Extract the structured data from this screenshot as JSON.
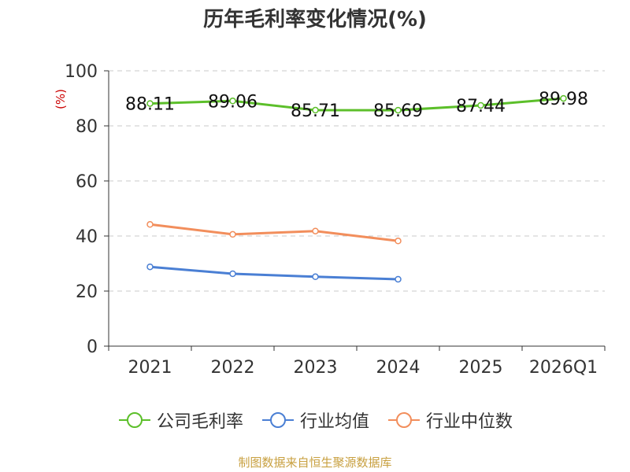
{
  "title": "历年毛利率变化情况(%)",
  "source": "制图数据来自恒生聚源数据库",
  "colors": {
    "company": "#5cbf2a",
    "industry_avg": "#4a7fd4",
    "industry_median": "#f28e5c",
    "ylabel": "#cc0000",
    "source": "#c8a040"
  },
  "legend": [
    {
      "label": "公司毛利率",
      "color": "#5cbf2a"
    },
    {
      "label": "行业均值",
      "color": "#4a7fd4"
    },
    {
      "label": "行业中位数",
      "color": "#f28e5c"
    }
  ],
  "chart_data": {
    "type": "line",
    "title": "历年毛利率变化情况(%)",
    "ylabel": "(%)",
    "xlabel": "",
    "categories": [
      "2021",
      "2022",
      "2023",
      "2024",
      "2025",
      "2026Q1"
    ],
    "ylim": [
      0,
      100
    ],
    "yticks": [
      0,
      20,
      40,
      60,
      80,
      100
    ],
    "grid": true,
    "legend_position": "bottom",
    "series": [
      {
        "name": "公司毛利率",
        "values": [
          88.11,
          89.06,
          85.71,
          85.69,
          87.44,
          89.98
        ],
        "labels": [
          "88.11",
          "89.06",
          "85.71",
          "85.69",
          "87.44",
          "89.98"
        ],
        "color": "#5cbf2a"
      },
      {
        "name": "行业均值",
        "values": [
          28.8,
          26.3,
          25.2,
          24.3,
          null,
          null
        ],
        "color": "#4a7fd4"
      },
      {
        "name": "行业中位数",
        "values": [
          44.2,
          40.6,
          41.8,
          38.2,
          null,
          null
        ],
        "color": "#f28e5c"
      }
    ]
  }
}
